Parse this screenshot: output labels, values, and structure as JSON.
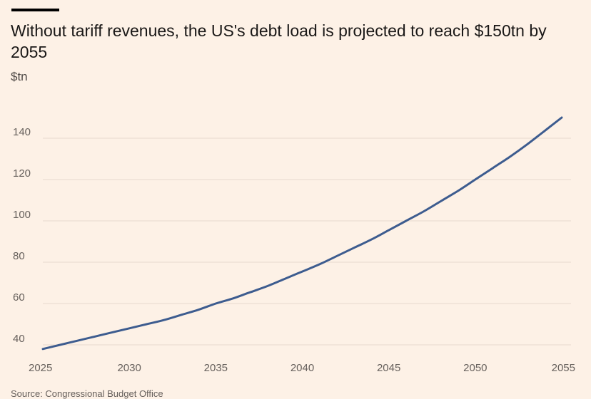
{
  "header": {
    "title": "Without tariff revenues, the US's debt load is projected to reach $150tn by 2055",
    "unit": "$tn"
  },
  "footer": {
    "source": "Source: Congressional Budget Office"
  },
  "colors": {
    "background": "#fdf1e6",
    "line": "#3d5c8f",
    "grid": "#e6d9ce",
    "accent_bar": "#000000"
  },
  "chart_data": {
    "type": "line",
    "title": "Without tariff revenues, the US's debt load is projected to reach $150tn by 2055",
    "ylabel": "$tn",
    "xlabel": "",
    "xlim": [
      2025,
      2055
    ],
    "ylim": [
      38,
      150
    ],
    "x_ticks": [
      2025,
      2030,
      2035,
      2040,
      2045,
      2050,
      2055
    ],
    "y_ticks": [
      40,
      60,
      80,
      100,
      120,
      140
    ],
    "grid": "horizontal",
    "legend": "none",
    "series": [
      {
        "x": [
          2025,
          2026,
          2027,
          2028,
          2029,
          2030,
          2031,
          2032,
          2033,
          2034,
          2035,
          2036,
          2037,
          2038,
          2039,
          2040,
          2041,
          2042,
          2043,
          2044,
          2045,
          2046,
          2047,
          2048,
          2049,
          2050,
          2051,
          2052,
          2053,
          2054,
          2055
        ],
        "values": [
          38,
          40,
          42,
          44,
          46,
          48,
          50,
          52,
          54.5,
          57,
          60,
          62.5,
          65.5,
          68.5,
          72,
          75.5,
          79,
          83,
          87,
          91,
          95.5,
          100,
          104.5,
          109.5,
          114.5,
          120,
          125.5,
          131,
          137,
          143.5,
          150
        ]
      }
    ]
  }
}
